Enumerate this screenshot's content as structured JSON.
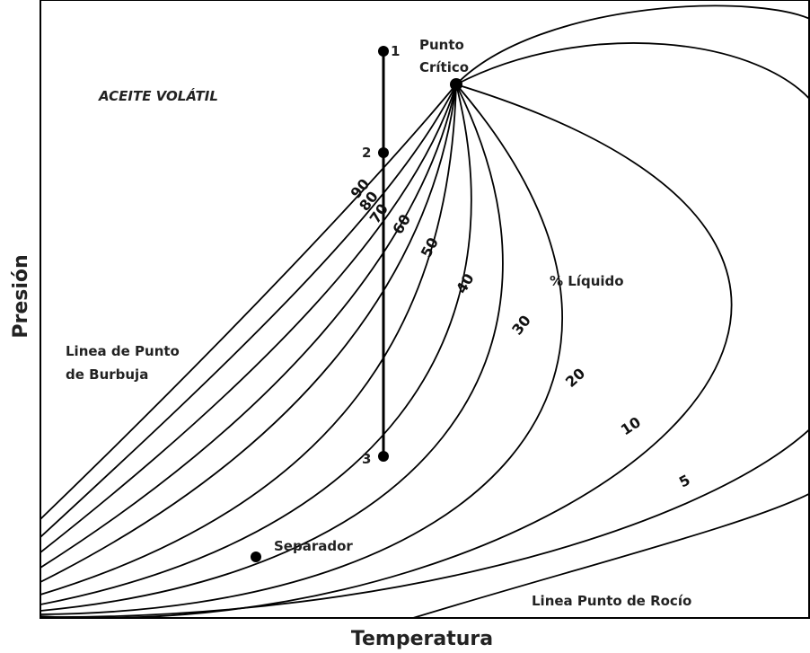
{
  "axes": {
    "x_label": "Temperatura",
    "y_label": "Presión"
  },
  "region_label": "ACEITE VOLÁTIL",
  "critical_point": {
    "line1": "Punto",
    "line2": "Crítico"
  },
  "bubble_line": {
    "line1": "Linea de Punto",
    "line2": "de Burbuja"
  },
  "dew_line": "Linea Punto de Rocío",
  "liquid_label": "% Líquido",
  "separator": "Separador",
  "points": [
    "1",
    "2",
    "3"
  ],
  "curve_labels": [
    "90",
    "80",
    "70",
    "60",
    "50",
    "40",
    "30",
    "20",
    "10",
    "5"
  ]
}
